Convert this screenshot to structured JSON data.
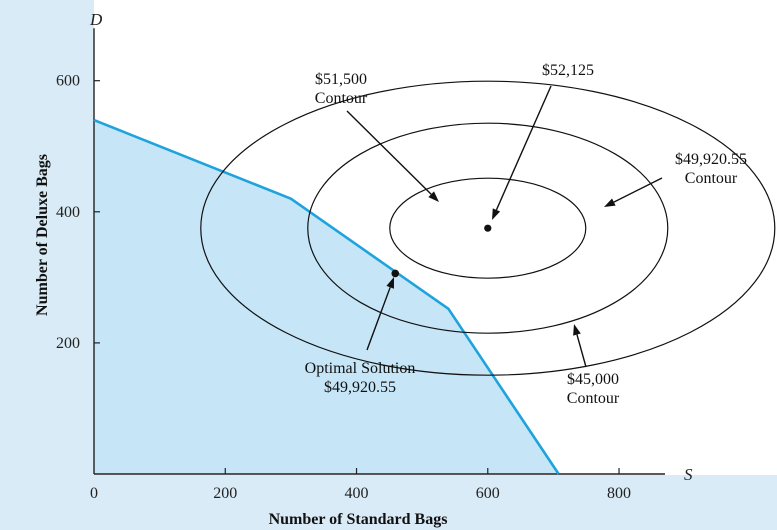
{
  "chart_data": {
    "type": "line",
    "x_axis": {
      "letter": "S",
      "label": "Number of Standard Bags",
      "ticks": [
        0,
        200,
        400,
        600,
        800
      ],
      "range": [
        0,
        870
      ]
    },
    "y_axis": {
      "letter": "D",
      "label": "Number of Deluxe Bags",
      "ticks": [
        200,
        400,
        600
      ],
      "range": [
        0,
        680
      ]
    },
    "feasible_region_boundary": [
      {
        "x": 0,
        "y": 540
      },
      {
        "x": 300,
        "y": 420
      },
      {
        "x": 540,
        "y": 252
      },
      {
        "x": 708,
        "y": 0
      }
    ],
    "optimal_point": {
      "x": 459,
      "y": 306
    },
    "center_point": {
      "x": 600,
      "y": 375
    },
    "contours": [
      {
        "name": "$45,000 Contour",
        "rx": 287,
        "ry": 147
      },
      {
        "name": "$49,920.55 Contour",
        "rx": 180,
        "ry": 105
      },
      {
        "name": "$51,500 Contour",
        "rx": 98,
        "ry": 50
      }
    ],
    "colors": {
      "region_fill": "#c6e6f8",
      "boundary_line": "#1ea3dc",
      "background": "#d9ebf6",
      "plot_background": "#ffffff"
    }
  },
  "annotations": {
    "c51500": {
      "line1": "$51,500",
      "line2": "Contour"
    },
    "c52125": {
      "line1": "$52,125"
    },
    "c49920": {
      "line1": "$49,920.55",
      "line2": "Contour"
    },
    "c45000": {
      "line1": "$45,000",
      "line2": "Contour"
    },
    "optimal": {
      "line1": "Optimal Solution",
      "line2": "$49,920.55"
    }
  }
}
